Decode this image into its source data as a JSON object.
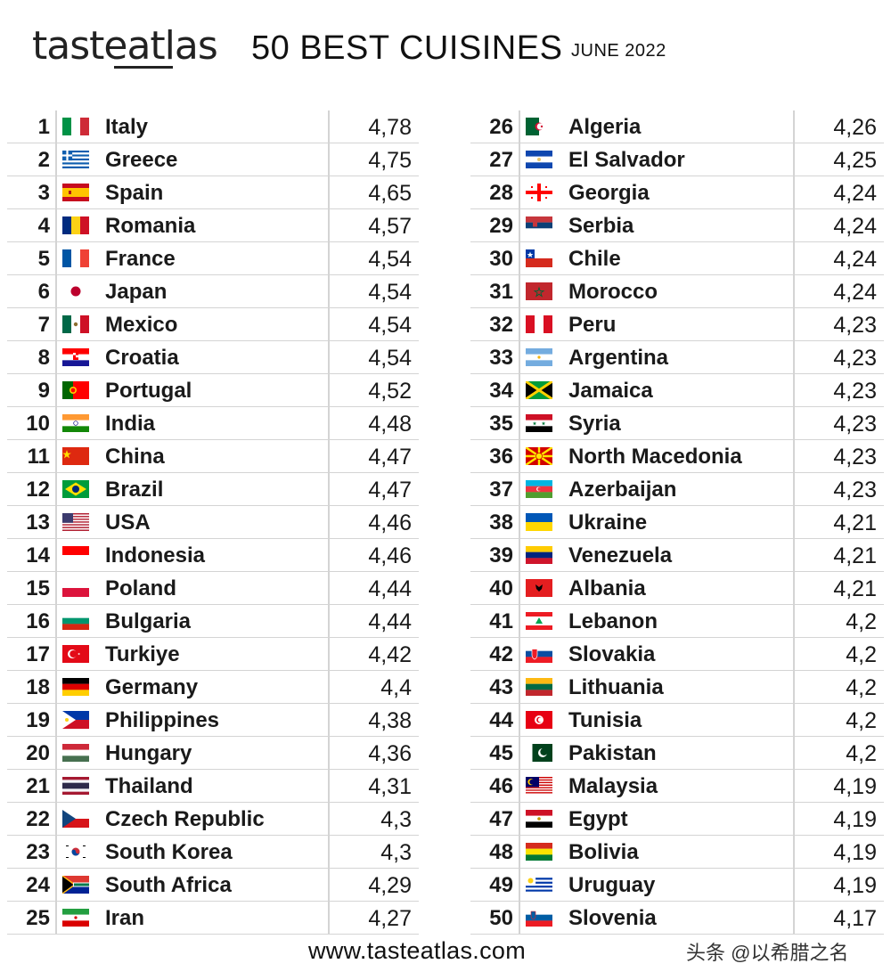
{
  "header": {
    "logo_text": "tasteatlas",
    "title": "50 BEST CUISINES",
    "date": "JUNE 2022"
  },
  "rankings": [
    {
      "rank": "1",
      "country": "Italy",
      "score": "4,78",
      "flag": "italy-flag-icon"
    },
    {
      "rank": "2",
      "country": "Greece",
      "score": "4,75",
      "flag": "greece-flag-icon"
    },
    {
      "rank": "3",
      "country": "Spain",
      "score": "4,65",
      "flag": "spain-flag-icon"
    },
    {
      "rank": "4",
      "country": "Romania",
      "score": "4,57",
      "flag": "romania-flag-icon"
    },
    {
      "rank": "5",
      "country": "France",
      "score": "4,54",
      "flag": "france-flag-icon"
    },
    {
      "rank": "6",
      "country": "Japan",
      "score": "4,54",
      "flag": "japan-flag-icon"
    },
    {
      "rank": "7",
      "country": "Mexico",
      "score": "4,54",
      "flag": "mexico-flag-icon"
    },
    {
      "rank": "8",
      "country": "Croatia",
      "score": "4,54",
      "flag": "croatia-flag-icon"
    },
    {
      "rank": "9",
      "country": "Portugal",
      "score": "4,52",
      "flag": "portugal-flag-icon"
    },
    {
      "rank": "10",
      "country": "India",
      "score": "4,48",
      "flag": "india-flag-icon"
    },
    {
      "rank": "11",
      "country": "China",
      "score": "4,47",
      "flag": "china-flag-icon"
    },
    {
      "rank": "12",
      "country": "Brazil",
      "score": "4,47",
      "flag": "brazil-flag-icon"
    },
    {
      "rank": "13",
      "country": "USA",
      "score": "4,46",
      "flag": "usa-flag-icon"
    },
    {
      "rank": "14",
      "country": "Indonesia",
      "score": "4,46",
      "flag": "indonesia-flag-icon"
    },
    {
      "rank": "15",
      "country": "Poland",
      "score": "4,44",
      "flag": "poland-flag-icon"
    },
    {
      "rank": "16",
      "country": "Bulgaria",
      "score": "4,44",
      "flag": "bulgaria-flag-icon"
    },
    {
      "rank": "17",
      "country": "Turkiye",
      "score": "4,42",
      "flag": "turkiye-flag-icon"
    },
    {
      "rank": "18",
      "country": "Germany",
      "score": "4,4",
      "flag": "germany-flag-icon"
    },
    {
      "rank": "19",
      "country": "Philippines",
      "score": "4,38",
      "flag": "philippines-flag-icon"
    },
    {
      "rank": "20",
      "country": "Hungary",
      "score": "4,36",
      "flag": "hungary-flag-icon"
    },
    {
      "rank": "21",
      "country": "Thailand",
      "score": "4,31",
      "flag": "thailand-flag-icon"
    },
    {
      "rank": "22",
      "country": "Czech Republic",
      "score": "4,3",
      "flag": "czech-republic-flag-icon"
    },
    {
      "rank": "23",
      "country": "South Korea",
      "score": "4,3",
      "flag": "south-korea-flag-icon"
    },
    {
      "rank": "24",
      "country": "South Africa",
      "score": "4,29",
      "flag": "south-africa-flag-icon"
    },
    {
      "rank": "25",
      "country": "Iran",
      "score": "4,27",
      "flag": "iran-flag-icon"
    },
    {
      "rank": "26",
      "country": "Algeria",
      "score": "4,26",
      "flag": "algeria-flag-icon"
    },
    {
      "rank": "27",
      "country": "El Salvador",
      "score": "4,25",
      "flag": "el-salvador-flag-icon"
    },
    {
      "rank": "28",
      "country": "Georgia",
      "score": "4,24",
      "flag": "georgia-flag-icon"
    },
    {
      "rank": "29",
      "country": "Serbia",
      "score": "4,24",
      "flag": "serbia-flag-icon"
    },
    {
      "rank": "30",
      "country": "Chile",
      "score": "4,24",
      "flag": "chile-flag-icon"
    },
    {
      "rank": "31",
      "country": "Morocco",
      "score": "4,24",
      "flag": "morocco-flag-icon"
    },
    {
      "rank": "32",
      "country": "Peru",
      "score": "4,23",
      "flag": "peru-flag-icon"
    },
    {
      "rank": "33",
      "country": "Argentina",
      "score": "4,23",
      "flag": "argentina-flag-icon"
    },
    {
      "rank": "34",
      "country": "Jamaica",
      "score": "4,23",
      "flag": "jamaica-flag-icon"
    },
    {
      "rank": "35",
      "country": "Syria",
      "score": "4,23",
      "flag": "syria-flag-icon"
    },
    {
      "rank": "36",
      "country": "North Macedonia",
      "score": "4,23",
      "flag": "north-macedonia-flag-icon"
    },
    {
      "rank": "37",
      "country": "Azerbaijan",
      "score": "4,23",
      "flag": "azerbaijan-flag-icon"
    },
    {
      "rank": "38",
      "country": "Ukraine",
      "score": "4,21",
      "flag": "ukraine-flag-icon"
    },
    {
      "rank": "39",
      "country": "Venezuela",
      "score": "4,21",
      "flag": "venezuela-flag-icon"
    },
    {
      "rank": "40",
      "country": "Albania",
      "score": "4,21",
      "flag": "albania-flag-icon"
    },
    {
      "rank": "41",
      "country": "Lebanon",
      "score": "4,2",
      "flag": "lebanon-flag-icon"
    },
    {
      "rank": "42",
      "country": "Slovakia",
      "score": "4,2",
      "flag": "slovakia-flag-icon"
    },
    {
      "rank": "43",
      "country": "Lithuania",
      "score": "4,2",
      "flag": "lithuania-flag-icon"
    },
    {
      "rank": "44",
      "country": "Tunisia",
      "score": "4,2",
      "flag": "tunisia-flag-icon"
    },
    {
      "rank": "45",
      "country": "Pakistan",
      "score": "4,2",
      "flag": "pakistan-flag-icon"
    },
    {
      "rank": "46",
      "country": "Malaysia",
      "score": "4,19",
      "flag": "malaysia-flag-icon"
    },
    {
      "rank": "47",
      "country": "Egypt",
      "score": "4,19",
      "flag": "egypt-flag-icon"
    },
    {
      "rank": "48",
      "country": "Bolivia",
      "score": "4,19",
      "flag": "bolivia-flag-icon"
    },
    {
      "rank": "49",
      "country": "Uruguay",
      "score": "4,19",
      "flag": "uruguay-flag-icon"
    },
    {
      "rank": "50",
      "country": "Slovenia",
      "score": "4,17",
      "flag": "slovenia-flag-icon"
    }
  ],
  "footer": {
    "url": "www.tasteatlas.com",
    "watermark": "头条 @以希腊之名"
  }
}
